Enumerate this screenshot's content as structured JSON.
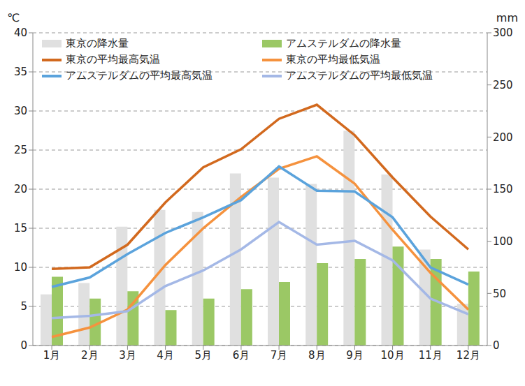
{
  "chart_data": {
    "type": "bar",
    "y_label": "℃",
    "y2_label": "mm",
    "categories": [
      "1月",
      "2月",
      "3月",
      "4月",
      "5月",
      "6月",
      "7月",
      "8月",
      "9月",
      "10月",
      "11月",
      "12月"
    ],
    "ylim": [
      0,
      40
    ],
    "yticks": [
      0,
      5,
      10,
      15,
      20,
      25,
      30,
      35,
      40
    ],
    "y2lim": [
      0,
      300
    ],
    "y2ticks": [
      0,
      50,
      100,
      150,
      200,
      250,
      300
    ],
    "grid": true,
    "legend": "top-left",
    "series": [
      {
        "name": "東京の降水量",
        "type": "bar",
        "axis": "y2",
        "color": "#e0e0e0",
        "values": [
          49,
          60,
          114,
          130,
          128,
          165,
          161,
          155,
          206,
          164,
          92,
          40
        ]
      },
      {
        "name": "アムステルダムの降水量",
        "type": "bar",
        "axis": "y2",
        "color": "#9bc865",
        "values": [
          66,
          45,
          52,
          34,
          45,
          54,
          61,
          79,
          83,
          95,
          83,
          71
        ]
      },
      {
        "name": "東京の平均最高気温",
        "type": "line",
        "color": "#d2691e",
        "values": [
          9.8,
          10,
          12.9,
          18.3,
          22.8,
          25.1,
          29,
          30.8,
          26.9,
          21.5,
          16.5,
          12.3
        ]
      },
      {
        "name": "東京の平均最低気温",
        "type": "line",
        "color": "#f5923e",
        "values": [
          1.1,
          2.3,
          4.6,
          10.3,
          15,
          19,
          22.6,
          24.2,
          20.7,
          14.8,
          9.3,
          4.6
        ]
      },
      {
        "name": "アムステルダムの平均最高気温",
        "type": "line",
        "color": "#5ba3dc",
        "values": [
          7.5,
          8.7,
          11.7,
          14.4,
          16.4,
          18.6,
          22.9,
          19.8,
          19.7,
          16.4,
          10,
          7.8
        ]
      },
      {
        "name": "アムステルダムの平均最低気温",
        "type": "line",
        "color": "#a4b8e6",
        "values": [
          3.5,
          3.8,
          4.4,
          7.6,
          9.6,
          12.3,
          15.8,
          12.9,
          13.4,
          10.9,
          6,
          4
        ]
      }
    ]
  }
}
